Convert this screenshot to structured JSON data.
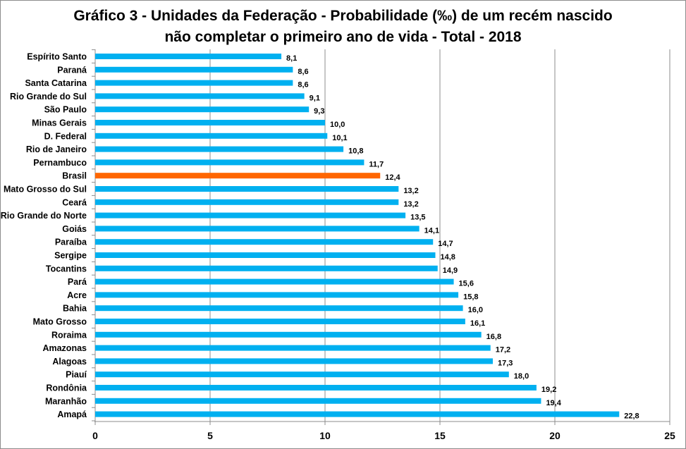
{
  "chart_data": {
    "type": "bar",
    "orientation": "horizontal",
    "title": "Gráfico 3 - Unidades da Federação - Probabilidade (‰) de  um recém nascido",
    "subtitle": "não completar o primeiro ano de vida - Total - 2018",
    "categories": [
      "Espírito Santo",
      "Paraná",
      "Santa Catarina",
      "Rio Grande do Sul",
      "São Paulo",
      "Minas Gerais",
      "D. Federal",
      "Rio de Janeiro",
      "Pernambuco",
      "Brasil",
      "Mato Grosso do Sul",
      "Ceará",
      "Rio Grande do Norte",
      "Goiás",
      "Paraíba",
      "Sergipe",
      "Tocantins",
      "Pará",
      "Acre",
      "Bahia",
      "Mato Grosso",
      "Roraima",
      "Amazonas",
      "Alagoas",
      "Piauí",
      "Rondônia",
      "Maranhão",
      "Amapá"
    ],
    "values": [
      8.1,
      8.6,
      8.6,
      9.1,
      9.3,
      10.0,
      10.1,
      10.8,
      11.7,
      12.4,
      13.2,
      13.2,
      13.5,
      14.1,
      14.7,
      14.8,
      14.9,
      15.6,
      15.8,
      16.0,
      16.1,
      16.8,
      17.2,
      17.3,
      18.0,
      19.2,
      19.4,
      22.8
    ],
    "value_labels": [
      "8,1",
      "8,6",
      "8,6",
      "9,1",
      "9,3",
      "10,0",
      "10,1",
      "10,8",
      "11,7",
      "12,4",
      "13,2",
      "13,2",
      "13,5",
      "14,1",
      "14,7",
      "14,8",
      "14,9",
      "15,6",
      "15,8",
      "16,0",
      "16,1",
      "16,8",
      "17,2",
      "17,3",
      "18,0",
      "19,2",
      "19,4",
      "22,8"
    ],
    "highlight": "Brasil",
    "xlim": [
      0,
      25
    ],
    "xticks": [
      0,
      5,
      10,
      15,
      20,
      25
    ],
    "grid": "vertical",
    "legend": "none",
    "colors": {
      "bar": "#00b0f0",
      "highlight": "#ff6600",
      "grid": "#8c8c8c"
    }
  }
}
